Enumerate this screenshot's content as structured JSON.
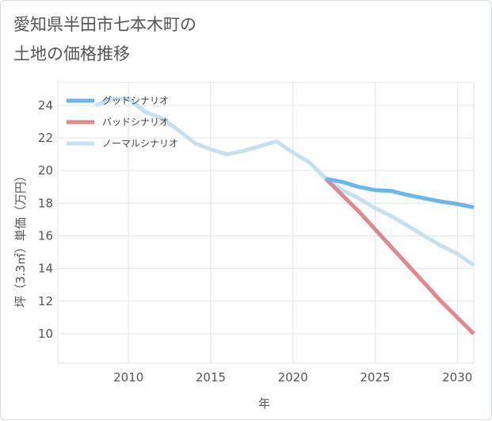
{
  "header": {
    "title_line1": "愛知県半田市七本木町の",
    "title_line2": "土地の価格推移"
  },
  "chart_data": {
    "type": "line",
    "title": "愛知県半田市七本木町の土地の価格推移",
    "xlabel": "年",
    "ylabel": "坪（3.3㎡）単価（万円）",
    "xlim": [
      2005.7,
      2031
    ],
    "ylim": [
      8.2,
      25.4
    ],
    "x_ticks": [
      2010,
      2015,
      2020,
      2025,
      2030
    ],
    "y_ticks": [
      10,
      12,
      14,
      16,
      18,
      20,
      22,
      24
    ],
    "grid": true,
    "legend_position": "top-left",
    "series": [
      {
        "name": "グッドシナリオ",
        "color": "#6cb6ee",
        "x": [
          2022,
          2023,
          2024,
          2025,
          2026,
          2027,
          2028,
          2029,
          2030,
          2031
        ],
        "values": [
          19.5,
          19.3,
          19.0,
          18.8,
          18.75,
          18.5,
          18.3,
          18.1,
          17.95,
          17.75
        ]
      },
      {
        "name": "バッドシナリオ",
        "color": "#e08890",
        "x": [
          2022,
          2023,
          2024,
          2025,
          2026,
          2027,
          2028,
          2029,
          2030,
          2031
        ],
        "values": [
          19.5,
          18.5,
          17.5,
          16.4,
          15.3,
          14.2,
          13.1,
          12.0,
          11.0,
          10.0
        ]
      },
      {
        "name": "ノーマルシナリオ",
        "color": "#c5e1ef",
        "x": [
          2008,
          2009,
          2010,
          2011,
          2012,
          2013,
          2014,
          2015,
          2016,
          2017,
          2018,
          2019,
          2020,
          2021,
          2022,
          2023,
          2024,
          2025,
          2026,
          2027,
          2028,
          2029,
          2030,
          2031
        ],
        "values": [
          24.0,
          24.4,
          24.4,
          23.6,
          23.2,
          22.5,
          21.7,
          21.3,
          21.0,
          21.2,
          21.5,
          21.8,
          21.1,
          20.5,
          19.5,
          18.8,
          18.3,
          17.7,
          17.2,
          16.6,
          16.0,
          15.4,
          14.9,
          14.2
        ]
      }
    ]
  }
}
